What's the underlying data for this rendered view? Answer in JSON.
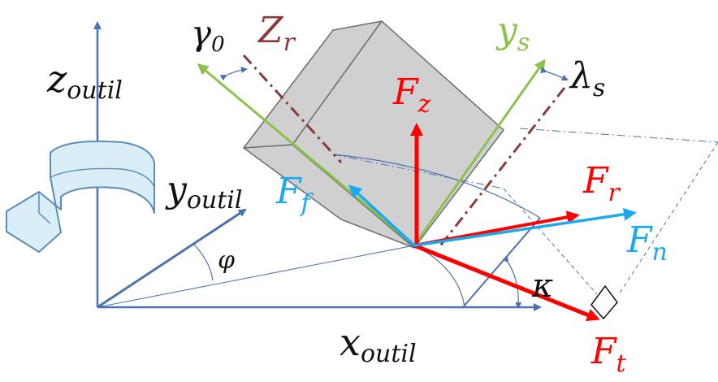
{
  "colors": {
    "axis": "#4a72b0",
    "body": "#d0d0d0",
    "body_edge": "#6b6b6b",
    "green": "#8ac24a",
    "red": "#ff0000",
    "cyan": "#1aa8ee",
    "dark_red": "#8b3a3a",
    "arrow_fill": "#daeef7",
    "arrow_stroke": "#5b8db8",
    "text_dark": "#111111"
  },
  "labels": {
    "z_tool": {
      "main": "z",
      "sub": "outil"
    },
    "y_tool": {
      "main": "y",
      "sub": "outil"
    },
    "x_tool": {
      "main": "x",
      "sub": "outil"
    },
    "gamma0": {
      "main": "γ",
      "sub": "0"
    },
    "Zr": {
      "main": "Z",
      "sub": "r"
    },
    "ys": {
      "main": "y",
      "sub": "s"
    },
    "lambda_s": {
      "main": "λ",
      "sub": "s"
    },
    "Fz": {
      "main": "F",
      "sub": "z"
    },
    "Ff": {
      "main": "F",
      "sub": "f"
    },
    "Fr": {
      "main": "F",
      "sub": "r"
    },
    "Fn": {
      "main": "F",
      "sub": "n"
    },
    "Ft": {
      "main": "F",
      "sub": "t"
    },
    "phi": "φ",
    "kappa": "κ"
  },
  "icons": {
    "rotation_arrow": "curved-arrow-icon",
    "right_angle": "right-angle-marker-icon"
  }
}
